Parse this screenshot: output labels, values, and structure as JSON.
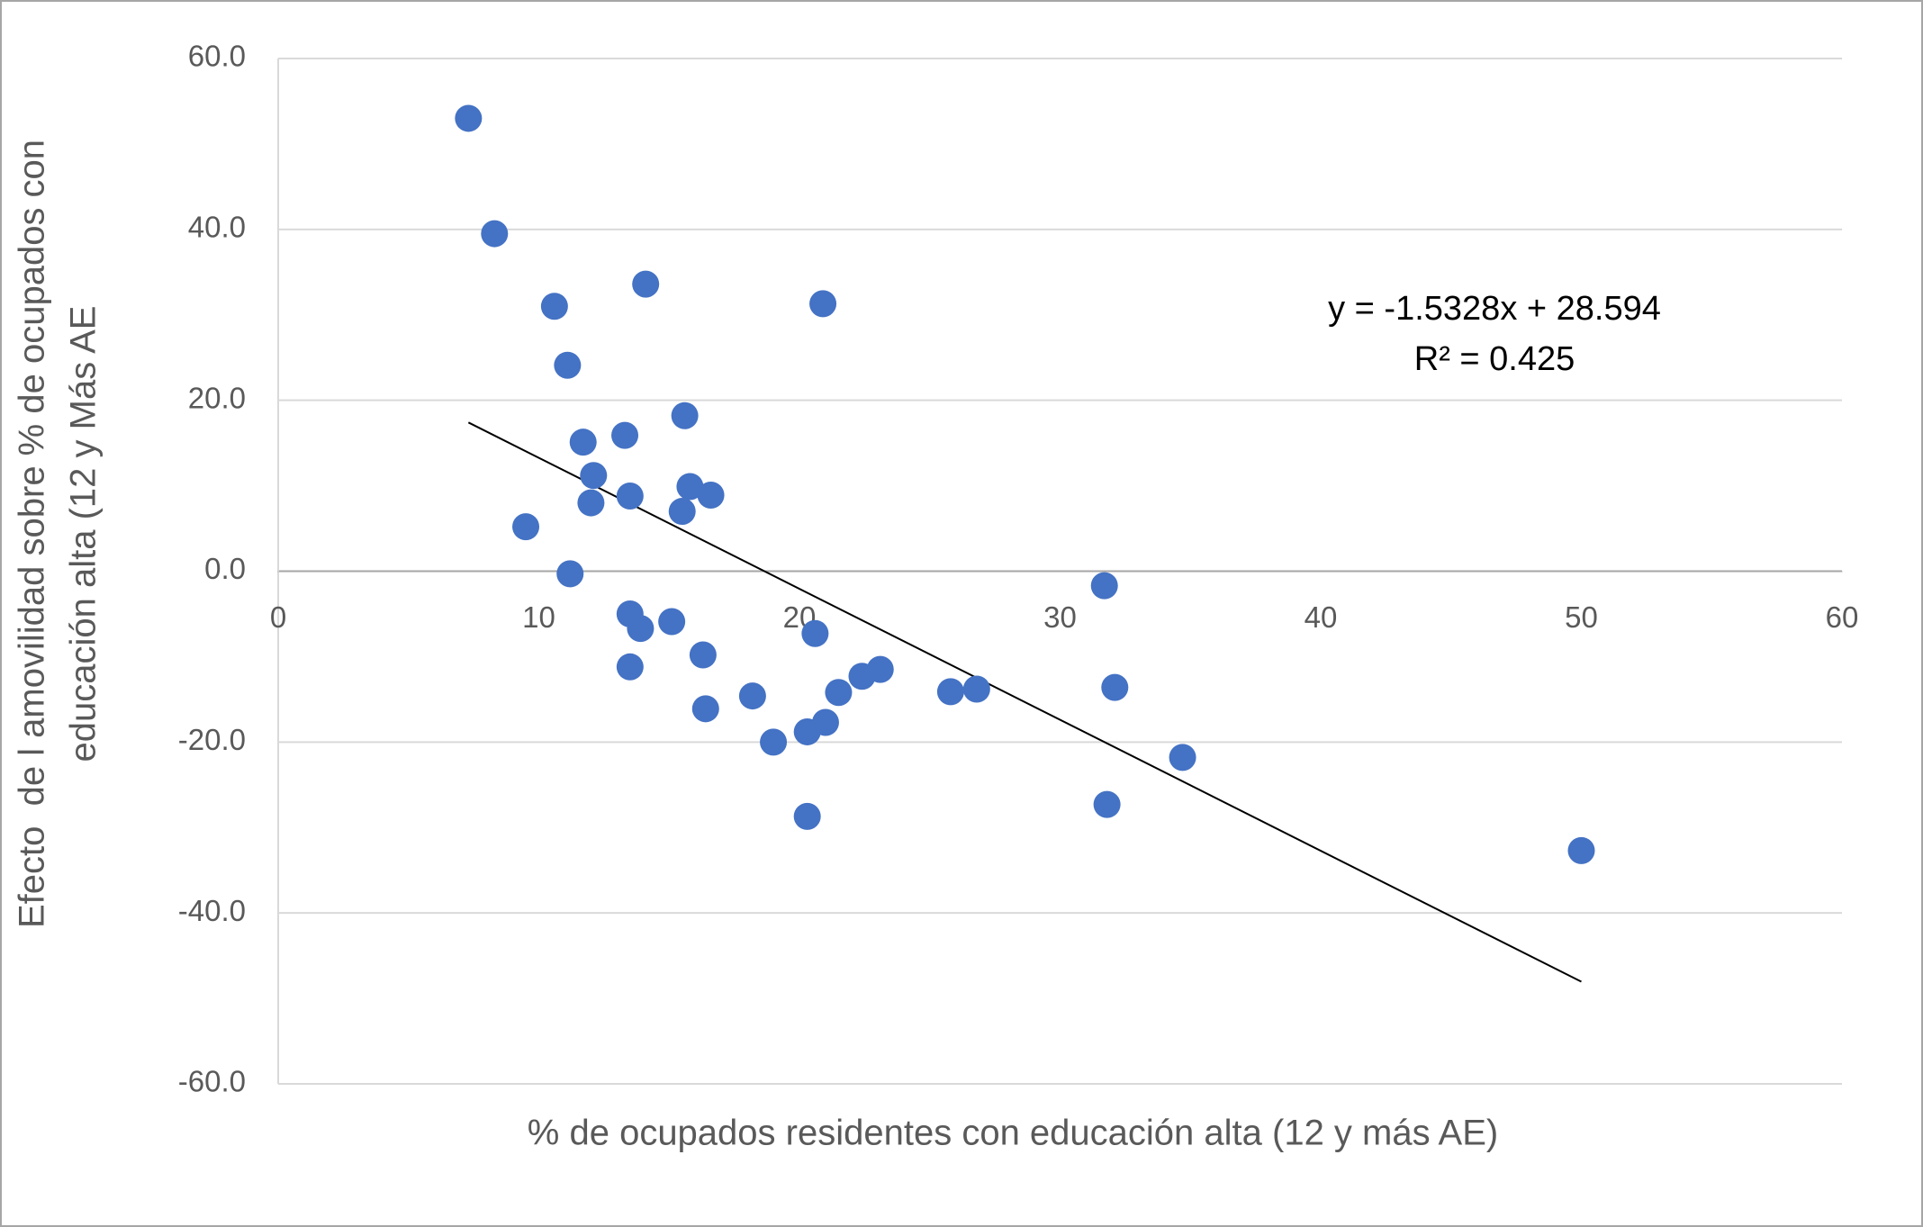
{
  "chart_data": {
    "type": "scatter",
    "xlabel": "% de ocupados residentes con educación alta (12 y más AE)",
    "ylabel": [
      "Efecto  de l amovilidad sobre % de ocupados con",
      "educación alta (12 y Más AE"
    ],
    "x": [
      7.3,
      8.3,
      10.6,
      11.1,
      14.1,
      20.9,
      11.7,
      13.3,
      15.6,
      12.1,
      12.0,
      13.5,
      15.8,
      16.6,
      15.5,
      9.5,
      11.2,
      13.5,
      13.9,
      15.1,
      20.6,
      13.5,
      16.3,
      16.4,
      18.2,
      19.0,
      20.3,
      21.0,
      20.3,
      21.5,
      22.4,
      23.1,
      25.8,
      26.8,
      31.7,
      32.1,
      31.8,
      34.7,
      50.0
    ],
    "series": [
      {
        "color": "#4472c4",
        "values": [
          53.0,
          39.5,
          31.0,
          24.1,
          33.6,
          31.3,
          15.1,
          15.9,
          18.2,
          11.2,
          8.0,
          8.8,
          9.9,
          8.9,
          7.0,
          5.2,
          -0.3,
          -5.0,
          -6.7,
          -5.9,
          -7.3,
          -11.2,
          -9.8,
          -16.1,
          -14.6,
          -20.0,
          -18.8,
          -17.7,
          -28.7,
          -14.2,
          -12.3,
          -11.5,
          -14.1,
          -13.8,
          -1.7,
          -13.6,
          -27.3,
          -21.8,
          -32.7
        ]
      }
    ],
    "xlim": [
      0,
      60
    ],
    "xticks": [
      0,
      10,
      20,
      30,
      40,
      50,
      60
    ],
    "ylim": [
      -60,
      60
    ],
    "yticks": [
      {
        "value": -60,
        "label": "-60.0"
      },
      {
        "value": -40,
        "label": "-40.0"
      },
      {
        "value": -20,
        "label": "-20.0"
      },
      {
        "value": 0,
        "label": "0.0"
      },
      {
        "value": 20,
        "label": "20.0"
      },
      {
        "value": 40,
        "label": "40.0"
      },
      {
        "value": 60,
        "label": "60.0"
      }
    ],
    "grid": true,
    "trendline": {
      "slope": -1.5328,
      "intercept": 28.594,
      "label": "y = -1.5328x + 28.594",
      "r2_label": "R² = 0.425",
      "color": "#000000"
    }
  }
}
